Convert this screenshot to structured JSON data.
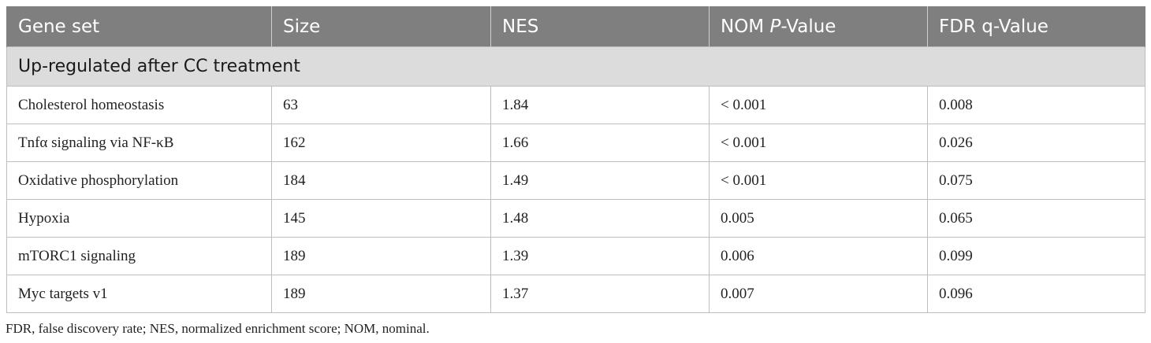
{
  "table": {
    "headers": {
      "gene_set": "Gene set",
      "size": "Size",
      "nes": "NES",
      "nom_prefix": "NOM ",
      "nom_italic": "P",
      "nom_suffix": "-Value",
      "fdr": "FDR q-Value"
    },
    "section_label": "Up-regulated after CC treatment",
    "rows": [
      {
        "gene_set": "Cholesterol homeostasis",
        "size": "63",
        "nes": "1.84",
        "nom_p": "< 0.001",
        "fdr_q": "0.008"
      },
      {
        "gene_set": "Tnfα signaling via NF-κB",
        "size": "162",
        "nes": "1.66",
        "nom_p": "< 0.001",
        "fdr_q": "0.026"
      },
      {
        "gene_set": "Oxidative phosphorylation",
        "size": "184",
        "nes": "1.49",
        "nom_p": "< 0.001",
        "fdr_q": "0.075"
      },
      {
        "gene_set": "Hypoxia",
        "size": "145",
        "nes": "1.48",
        "nom_p": "0.005",
        "fdr_q": "0.065"
      },
      {
        "gene_set": "mTORC1 signaling",
        "size": "189",
        "nes": "1.39",
        "nom_p": "0.006",
        "fdr_q": "0.099"
      },
      {
        "gene_set": "Myc targets v1",
        "size": "189",
        "nes": "1.37",
        "nom_p": "0.007",
        "fdr_q": "0.096"
      }
    ]
  },
  "footnote": "FDR, false discovery rate; NES, normalized enrichment score; NOM, nominal.",
  "colors": {
    "header_bg": "#7f7f7f",
    "section_bg": "#dcdcdc",
    "border": "#bdbdbd"
  }
}
